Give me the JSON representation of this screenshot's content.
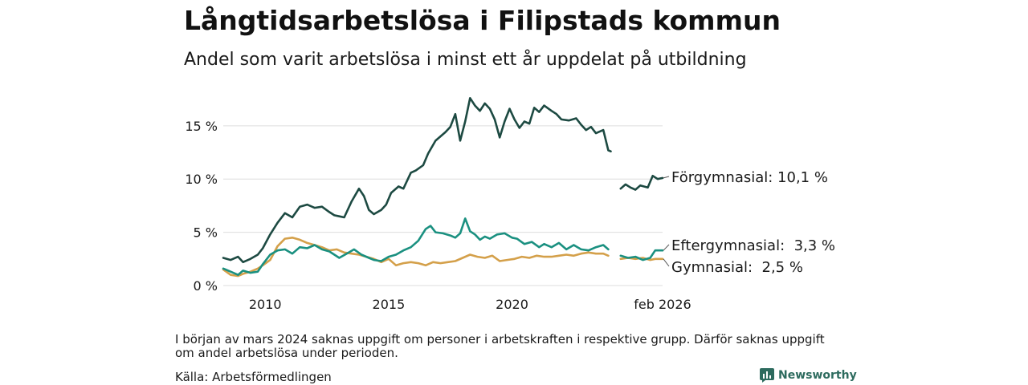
{
  "title": "Långtidsarbetslösa i Filipstads kommun",
  "subtitle": "Andel som varit arbetslösa i minst ett år uppdelat på utbildning",
  "note": "I början av mars 2024 saknas uppgift om personer i arbetskraften i respektive grupp. Därför saknas uppgift om andel arbetslösa under perioden.",
  "source": "Källa: Arbetsförmedlingen",
  "brand": "Newsworthy",
  "colors": {
    "forgymnasial": "#1d4a42",
    "eftergymnasial": "#1a9080",
    "gymnasial": "#d4a04a",
    "grid": "#dddddd",
    "text": "#1a1a1a"
  },
  "chart_data": {
    "type": "line",
    "title": "Långtidsarbetslösa i Filipstads kommun",
    "xlabel": "",
    "ylabel": "",
    "xlim": [
      2008.3,
      2026.1
    ],
    "ylim": [
      0,
      18
    ],
    "y_ticks": [
      {
        "value": 0,
        "label": "0 %"
      },
      {
        "value": 5,
        "label": "5 %"
      },
      {
        "value": 10,
        "label": "10 %"
      },
      {
        "value": 15,
        "label": "15 %"
      }
    ],
    "x_ticks": [
      {
        "value": 2010,
        "label": "2010"
      },
      {
        "value": 2015,
        "label": "2015"
      },
      {
        "value": 2020,
        "label": "2020"
      },
      {
        "value": 2026.1,
        "label": "feb 2026"
      }
    ],
    "gap": [
      2024.1,
      2024.4
    ],
    "series": [
      {
        "key": "forgymnasial",
        "name": "Förgymnasial",
        "end_label": "Förgymnasial: 10,1 %",
        "points": [
          [
            2008.3,
            2.6
          ],
          [
            2008.6,
            2.4
          ],
          [
            2008.9,
            2.7
          ],
          [
            2009.1,
            2.2
          ],
          [
            2009.4,
            2.5
          ],
          [
            2009.7,
            2.9
          ],
          [
            2009.9,
            3.5
          ],
          [
            2010.2,
            4.8
          ],
          [
            2010.5,
            5.9
          ],
          [
            2010.8,
            6.8
          ],
          [
            2011.1,
            6.4
          ],
          [
            2011.4,
            7.4
          ],
          [
            2011.7,
            7.6
          ],
          [
            2012.0,
            7.3
          ],
          [
            2012.3,
            7.4
          ],
          [
            2012.6,
            6.9
          ],
          [
            2012.8,
            6.6
          ],
          [
            2013.0,
            6.5
          ],
          [
            2013.2,
            6.4
          ],
          [
            2013.5,
            7.9
          ],
          [
            2013.8,
            9.1
          ],
          [
            2014.0,
            8.4
          ],
          [
            2014.2,
            7.1
          ],
          [
            2014.4,
            6.7
          ],
          [
            2014.7,
            7.1
          ],
          [
            2014.9,
            7.6
          ],
          [
            2015.1,
            8.7
          ],
          [
            2015.4,
            9.3
          ],
          [
            2015.6,
            9.1
          ],
          [
            2015.9,
            10.6
          ],
          [
            2016.1,
            10.8
          ],
          [
            2016.4,
            11.3
          ],
          [
            2016.6,
            12.4
          ],
          [
            2016.9,
            13.6
          ],
          [
            2017.1,
            14.0
          ],
          [
            2017.3,
            14.4
          ],
          [
            2017.5,
            14.9
          ],
          [
            2017.7,
            16.1
          ],
          [
            2017.9,
            13.6
          ],
          [
            2018.1,
            15.4
          ],
          [
            2018.3,
            17.6
          ],
          [
            2018.5,
            16.9
          ],
          [
            2018.7,
            16.4
          ],
          [
            2018.9,
            17.1
          ],
          [
            2019.1,
            16.6
          ],
          [
            2019.3,
            15.6
          ],
          [
            2019.5,
            13.9
          ],
          [
            2019.7,
            15.4
          ],
          [
            2019.9,
            16.6
          ],
          [
            2020.1,
            15.6
          ],
          [
            2020.3,
            14.8
          ],
          [
            2020.5,
            15.4
          ],
          [
            2020.7,
            15.2
          ],
          [
            2020.9,
            16.7
          ],
          [
            2021.1,
            16.3
          ],
          [
            2021.3,
            16.9
          ],
          [
            2021.6,
            16.4
          ],
          [
            2021.8,
            16.1
          ],
          [
            2022.0,
            15.6
          ],
          [
            2022.3,
            15.5
          ],
          [
            2022.6,
            15.7
          ],
          [
            2022.8,
            15.1
          ],
          [
            2023.0,
            14.6
          ],
          [
            2023.2,
            14.9
          ],
          [
            2023.4,
            14.3
          ],
          [
            2023.7,
            14.6
          ],
          [
            2023.9,
            12.7
          ],
          [
            2024.0,
            12.6
          ],
          null,
          [
            2024.4,
            9.1
          ],
          [
            2024.6,
            9.5
          ],
          [
            2024.8,
            9.2
          ],
          [
            2025.0,
            9.0
          ],
          [
            2025.2,
            9.4
          ],
          [
            2025.5,
            9.2
          ],
          [
            2025.7,
            10.3
          ],
          [
            2025.9,
            10.0
          ],
          [
            2026.1,
            10.1
          ]
        ]
      },
      {
        "key": "eftergymnasial",
        "name": "Eftergymnasial",
        "end_label": "Eftergymnasial:  3,3 %",
        "points": [
          [
            2008.3,
            1.6
          ],
          [
            2008.6,
            1.3
          ],
          [
            2008.9,
            1.0
          ],
          [
            2009.1,
            1.4
          ],
          [
            2009.4,
            1.2
          ],
          [
            2009.7,
            1.3
          ],
          [
            2009.9,
            2.0
          ],
          [
            2010.2,
            2.9
          ],
          [
            2010.5,
            3.3
          ],
          [
            2010.8,
            3.4
          ],
          [
            2011.1,
            3.0
          ],
          [
            2011.4,
            3.6
          ],
          [
            2011.7,
            3.5
          ],
          [
            2012.0,
            3.8
          ],
          [
            2012.3,
            3.4
          ],
          [
            2012.6,
            3.2
          ],
          [
            2012.8,
            2.9
          ],
          [
            2013.0,
            2.6
          ],
          [
            2013.3,
            3.0
          ],
          [
            2013.6,
            3.4
          ],
          [
            2013.9,
            2.9
          ],
          [
            2014.2,
            2.6
          ],
          [
            2014.4,
            2.4
          ],
          [
            2014.7,
            2.3
          ],
          [
            2015.0,
            2.7
          ],
          [
            2015.3,
            2.9
          ],
          [
            2015.6,
            3.3
          ],
          [
            2015.9,
            3.6
          ],
          [
            2016.2,
            4.2
          ],
          [
            2016.5,
            5.3
          ],
          [
            2016.7,
            5.6
          ],
          [
            2016.9,
            5.0
          ],
          [
            2017.2,
            4.9
          ],
          [
            2017.5,
            4.7
          ],
          [
            2017.7,
            4.5
          ],
          [
            2017.9,
            4.9
          ],
          [
            2018.1,
            6.3
          ],
          [
            2018.3,
            5.1
          ],
          [
            2018.5,
            4.8
          ],
          [
            2018.7,
            4.3
          ],
          [
            2018.9,
            4.6
          ],
          [
            2019.1,
            4.4
          ],
          [
            2019.4,
            4.8
          ],
          [
            2019.7,
            4.9
          ],
          [
            2020.0,
            4.5
          ],
          [
            2020.2,
            4.4
          ],
          [
            2020.5,
            3.9
          ],
          [
            2020.8,
            4.1
          ],
          [
            2021.1,
            3.6
          ],
          [
            2021.3,
            3.9
          ],
          [
            2021.6,
            3.6
          ],
          [
            2021.9,
            4.0
          ],
          [
            2022.2,
            3.4
          ],
          [
            2022.5,
            3.8
          ],
          [
            2022.8,
            3.4
          ],
          [
            2023.1,
            3.3
          ],
          [
            2023.4,
            3.6
          ],
          [
            2023.7,
            3.8
          ],
          [
            2023.9,
            3.4
          ],
          null,
          [
            2024.4,
            2.8
          ],
          [
            2024.7,
            2.6
          ],
          [
            2025.0,
            2.7
          ],
          [
            2025.3,
            2.4
          ],
          [
            2025.6,
            2.6
          ],
          [
            2025.8,
            3.3
          ],
          [
            2026.1,
            3.3
          ]
        ]
      },
      {
        "key": "gymnasial",
        "name": "Gymnasial",
        "end_label": "Gymnasial:  2,5 %",
        "points": [
          [
            2008.3,
            1.5
          ],
          [
            2008.6,
            1.0
          ],
          [
            2008.9,
            0.9
          ],
          [
            2009.1,
            1.1
          ],
          [
            2009.4,
            1.3
          ],
          [
            2009.7,
            1.6
          ],
          [
            2009.9,
            1.9
          ],
          [
            2010.2,
            2.4
          ],
          [
            2010.5,
            3.7
          ],
          [
            2010.8,
            4.4
          ],
          [
            2011.1,
            4.5
          ],
          [
            2011.4,
            4.3
          ],
          [
            2011.7,
            4.0
          ],
          [
            2012.0,
            3.8
          ],
          [
            2012.3,
            3.6
          ],
          [
            2012.6,
            3.3
          ],
          [
            2012.9,
            3.4
          ],
          [
            2013.2,
            3.1
          ],
          [
            2013.5,
            3.0
          ],
          [
            2013.8,
            2.9
          ],
          [
            2014.1,
            2.7
          ],
          [
            2014.4,
            2.5
          ],
          [
            2014.7,
            2.2
          ],
          [
            2015.0,
            2.5
          ],
          [
            2015.3,
            1.9
          ],
          [
            2015.6,
            2.1
          ],
          [
            2015.9,
            2.2
          ],
          [
            2016.2,
            2.1
          ],
          [
            2016.5,
            1.9
          ],
          [
            2016.8,
            2.2
          ],
          [
            2017.1,
            2.1
          ],
          [
            2017.4,
            2.2
          ],
          [
            2017.7,
            2.3
          ],
          [
            2018.0,
            2.6
          ],
          [
            2018.3,
            2.9
          ],
          [
            2018.6,
            2.7
          ],
          [
            2018.9,
            2.6
          ],
          [
            2019.2,
            2.8
          ],
          [
            2019.5,
            2.3
          ],
          [
            2019.8,
            2.4
          ],
          [
            2020.1,
            2.5
          ],
          [
            2020.4,
            2.7
          ],
          [
            2020.7,
            2.6
          ],
          [
            2021.0,
            2.8
          ],
          [
            2021.3,
            2.7
          ],
          [
            2021.6,
            2.7
          ],
          [
            2021.9,
            2.8
          ],
          [
            2022.2,
            2.9
          ],
          [
            2022.5,
            2.8
          ],
          [
            2022.8,
            3.0
          ],
          [
            2023.1,
            3.1
          ],
          [
            2023.4,
            3.0
          ],
          [
            2023.7,
            3.0
          ],
          [
            2023.9,
            2.8
          ],
          null,
          [
            2024.4,
            2.5
          ],
          [
            2024.7,
            2.6
          ],
          [
            2025.0,
            2.5
          ],
          [
            2025.3,
            2.6
          ],
          [
            2025.6,
            2.4
          ],
          [
            2025.8,
            2.5
          ],
          [
            2026.1,
            2.5
          ]
        ]
      }
    ]
  }
}
